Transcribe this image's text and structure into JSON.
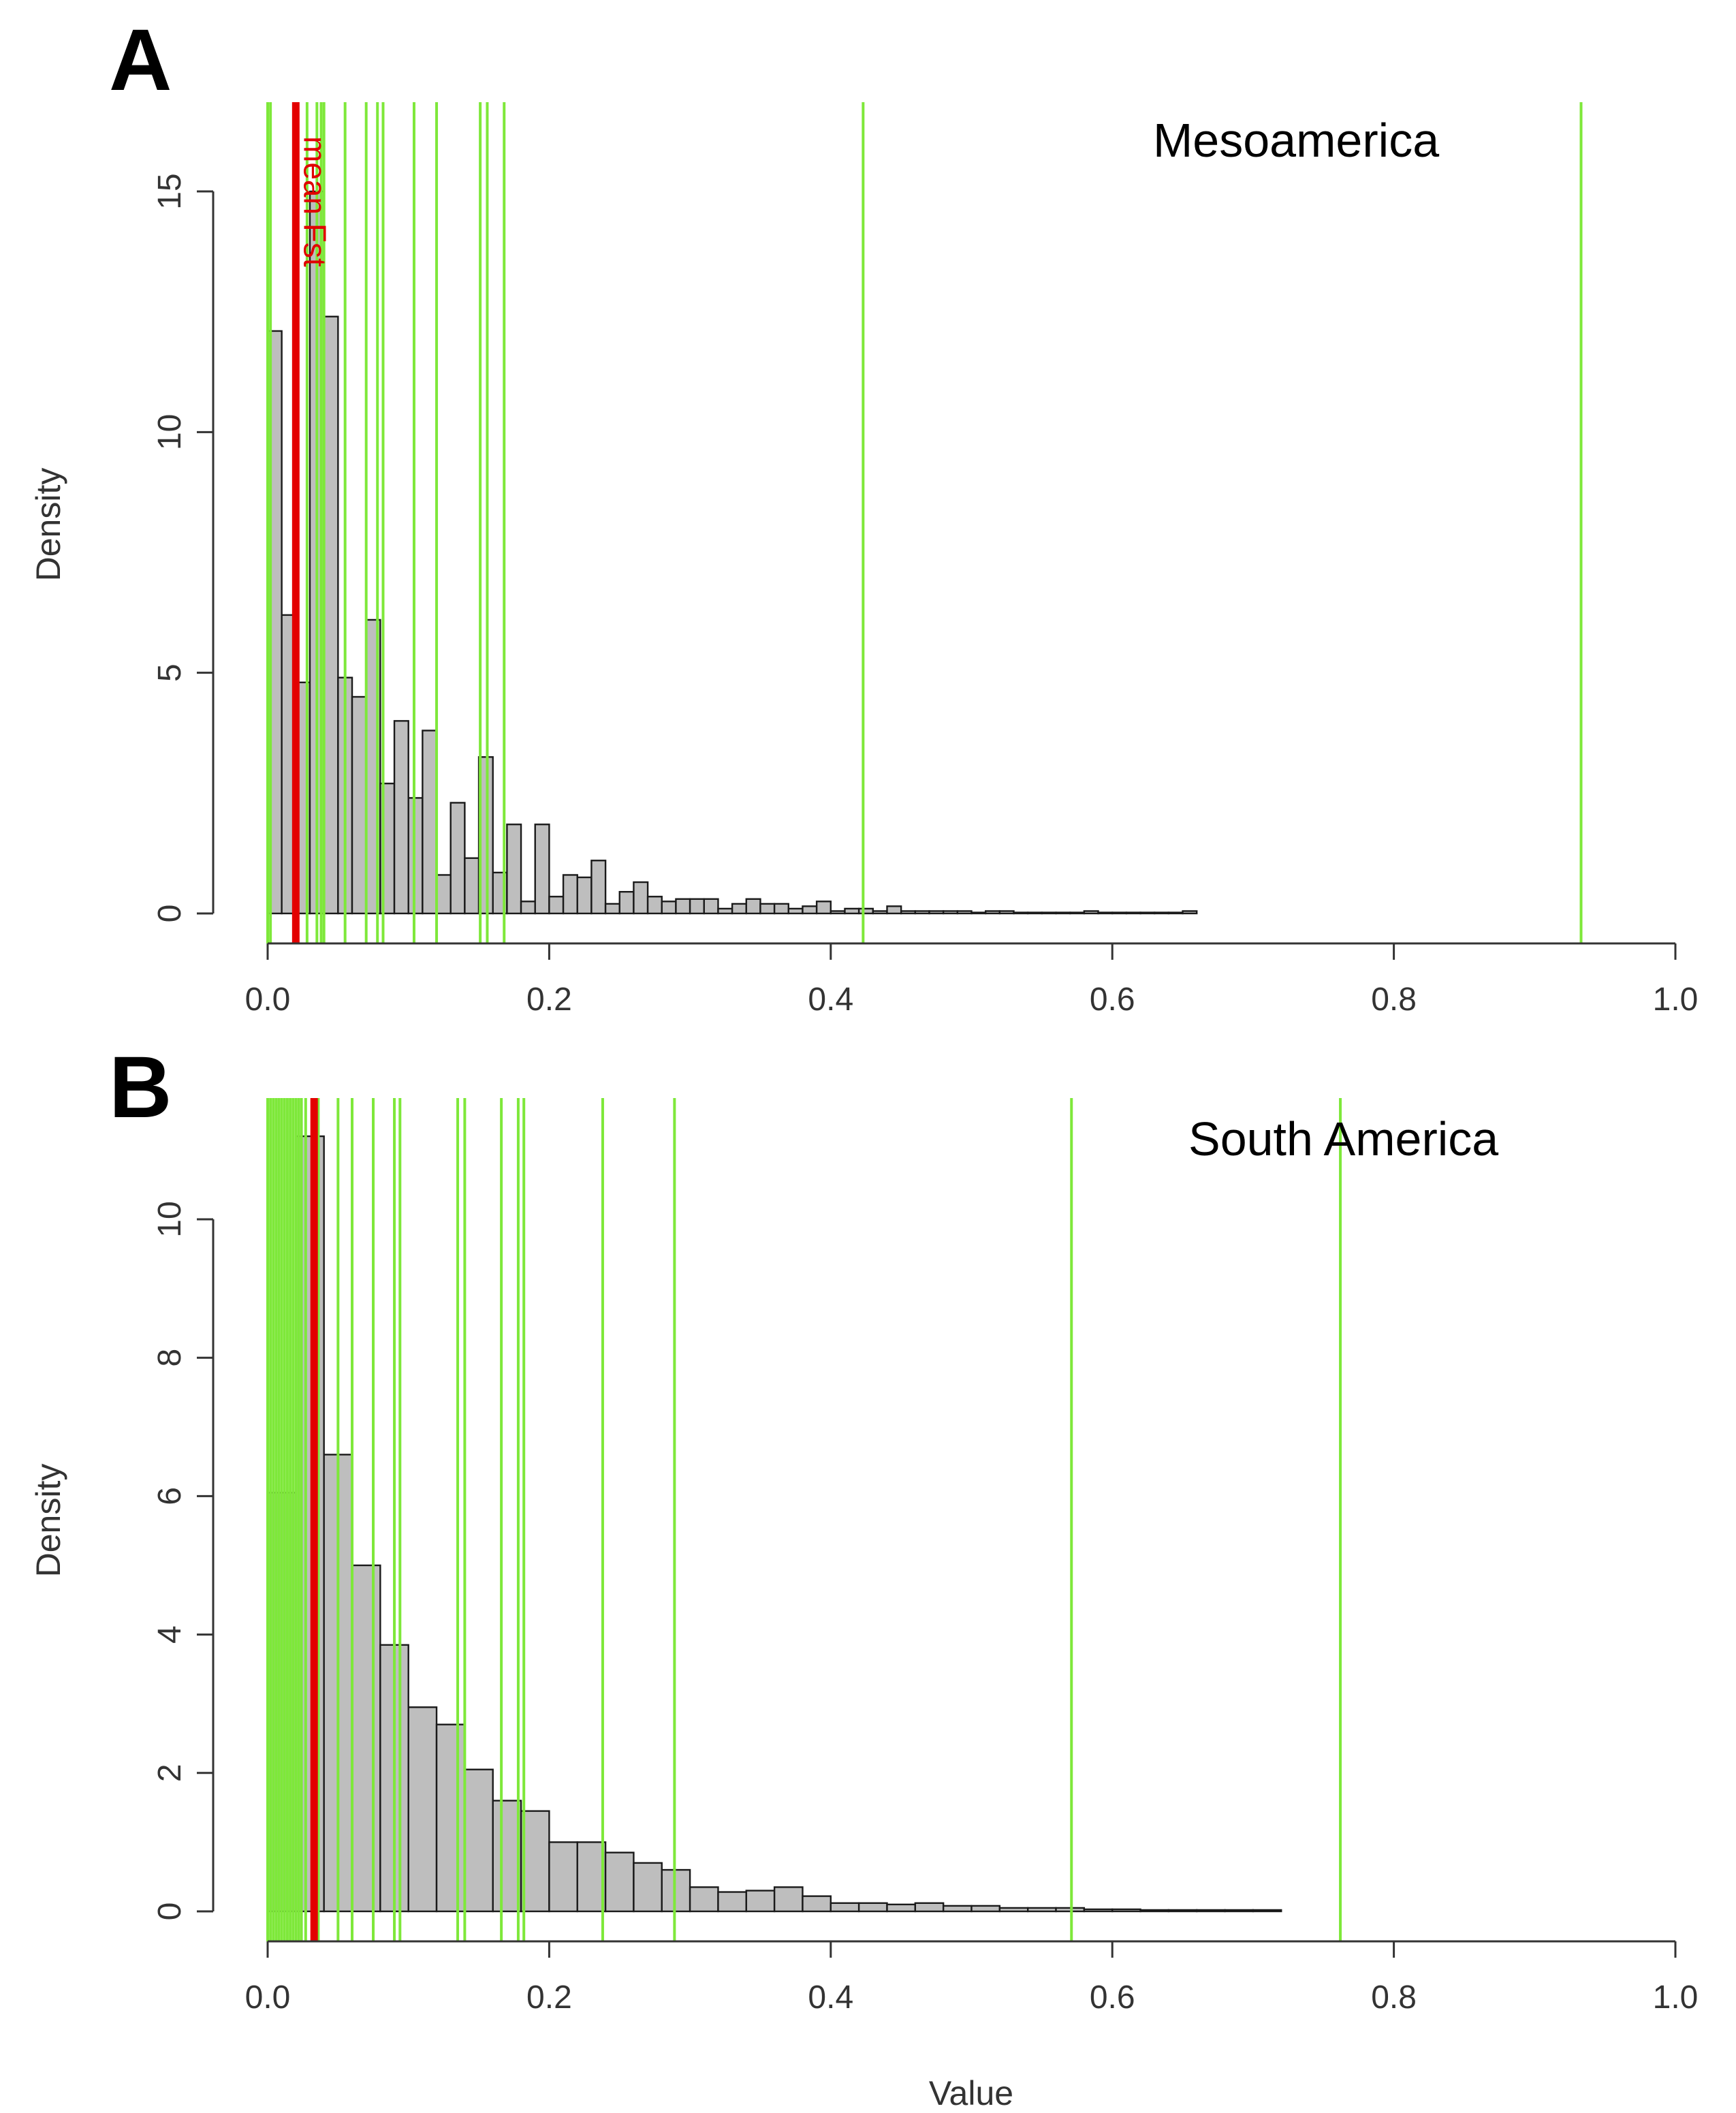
{
  "colors": {
    "bar_fill": "#bebebe",
    "bar_stroke": "#1a1a1a",
    "snp_line": "#7ee83a",
    "mean_line": "#e30000",
    "axis": "#333333"
  },
  "chart_data": [
    {
      "type": "bar",
      "panel": "A",
      "title": "Mesoamerica",
      "xlabel": "",
      "ylabel": "Density",
      "xlim": [
        0,
        1
      ],
      "ylim": [
        0,
        15
      ],
      "x_ticks": [
        "0.0",
        "0.2",
        "0.4",
        "0.6",
        "0.8",
        "1.0"
      ],
      "y_ticks": [
        "0",
        "5",
        "10",
        "15"
      ],
      "bin_width": 0.01,
      "bin_start": 0.0,
      "values": [
        12.1,
        6.2,
        4.8,
        15.0,
        12.4,
        4.9,
        4.5,
        6.1,
        2.7,
        4.0,
        2.4,
        3.8,
        0.8,
        2.3,
        1.15,
        3.25,
        0.85,
        1.85,
        0.25,
        1.85,
        0.35,
        0.8,
        0.75,
        1.1,
        0.2,
        0.45,
        0.65,
        0.35,
        0.25,
        0.3,
        0.3,
        0.3,
        0.1,
        0.2,
        0.3,
        0.2,
        0.2,
        0.1,
        0.15,
        0.25,
        0.05,
        0.1,
        0.1,
        0.05,
        0.15,
        0.05,
        0.05,
        0.05,
        0.05,
        0.05,
        0.02,
        0.05,
        0.05,
        0.02,
        0.02,
        0.02,
        0.02,
        0.02,
        0.05,
        0.02,
        0.02,
        0.02,
        0.02,
        0.02,
        0.02,
        0.05
      ],
      "snp_fst_lines": [
        0.0,
        0.002,
        0.028,
        0.035,
        0.038,
        0.04,
        0.055,
        0.07,
        0.078,
        0.082,
        0.104,
        0.12,
        0.151,
        0.156,
        0.168,
        0.423,
        0.933
      ],
      "mean_fst": 0.02,
      "mean_label": "mean Fst"
    },
    {
      "type": "bar",
      "panel": "B",
      "title": "South America",
      "xlabel": "Value",
      "ylabel": "Density",
      "xlim": [
        0,
        1
      ],
      "ylim": [
        0,
        11.3
      ],
      "x_ticks": [
        "0.0",
        "0.2",
        "0.4",
        "0.6",
        "0.8",
        "1.0"
      ],
      "y_ticks": [
        "0",
        "2",
        "4",
        "6",
        "8",
        "10"
      ],
      "bin_width": 0.02,
      "bin_start": 0.0,
      "values": [
        6.05,
        11.2,
        6.6,
        5.0,
        3.85,
        2.95,
        2.7,
        2.05,
        1.6,
        1.45,
        1.0,
        1.0,
        0.85,
        0.7,
        0.6,
        0.35,
        0.28,
        0.3,
        0.35,
        0.22,
        0.12,
        0.12,
        0.1,
        0.12,
        0.08,
        0.08,
        0.05,
        0.05,
        0.05,
        0.03,
        0.03,
        0.02,
        0.02,
        0.02,
        0.02,
        0.02
      ],
      "snp_fst_lines": [
        0.0,
        0.002,
        0.004,
        0.006,
        0.008,
        0.01,
        0.012,
        0.014,
        0.016,
        0.018,
        0.02,
        0.022,
        0.024,
        0.027,
        0.036,
        0.05,
        0.06,
        0.075,
        0.09,
        0.094,
        0.135,
        0.14,
        0.166,
        0.178,
        0.182,
        0.238,
        0.289,
        0.571,
        0.762
      ],
      "mean_fst": 0.033,
      "mean_label": ""
    }
  ]
}
